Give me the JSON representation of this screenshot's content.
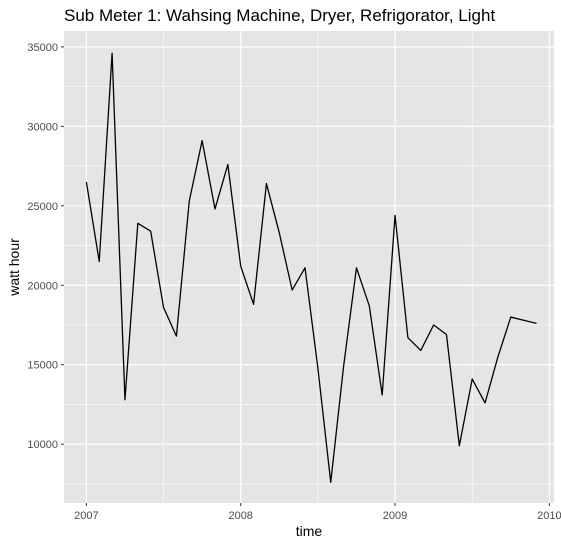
{
  "chart_data": {
    "type": "line",
    "title": "Sub Meter 1: Wahsing Machine, Dryer, Refrigorator, Light",
    "xlabel": "time",
    "ylabel": "watt hour",
    "x_ticks": [
      {
        "value": 2007,
        "label": "2007"
      },
      {
        "value": 2008,
        "label": "2008"
      },
      {
        "value": 2009,
        "label": "2009"
      },
      {
        "value": 2010,
        "label": "2010"
      }
    ],
    "y_ticks": [
      {
        "value": 10000,
        "label": "10000"
      },
      {
        "value": 15000,
        "label": "15000"
      },
      {
        "value": 20000,
        "label": "20000"
      },
      {
        "value": 25000,
        "label": "25000"
      },
      {
        "value": 30000,
        "label": "30000"
      },
      {
        "value": 35000,
        "label": "35000"
      }
    ],
    "xlim": [
      2006.855,
      2010.03
    ],
    "ylim": [
      6300,
      36000
    ],
    "grid": true,
    "background_color": "#e5e5e5",
    "grid_color": "#ffffff",
    "line_color": "#000000",
    "series": [
      {
        "x": [
          "2007-01",
          "2007-02",
          "2007-03",
          "2007-04",
          "2007-05",
          "2007-06",
          "2007-07",
          "2007-08",
          "2007-09",
          "2007-10",
          "2007-11",
          "2007-12",
          "2008-01",
          "2008-02",
          "2008-03",
          "2008-04",
          "2008-05",
          "2008-06",
          "2008-07",
          "2008-08",
          "2008-09",
          "2008-10",
          "2008-11",
          "2008-12",
          "2009-01",
          "2009-02",
          "2009-03",
          "2009-04",
          "2009-05",
          "2009-06",
          "2009-07",
          "2009-08",
          "2009-09",
          "2009-10",
          "2009-11",
          "2009-12"
        ],
        "values": [
          26500,
          21500,
          34600,
          12800,
          23900,
          23400,
          18600,
          16800,
          25300,
          29100,
          24800,
          27600,
          21200,
          18800,
          26400,
          23300,
          19700,
          21100,
          14800,
          7600,
          14900,
          21100,
          18700,
          13100,
          24400,
          16700,
          15900,
          17500,
          16900,
          9900,
          14100,
          12600,
          15500,
          18000,
          17800,
          17600
        ]
      }
    ]
  }
}
